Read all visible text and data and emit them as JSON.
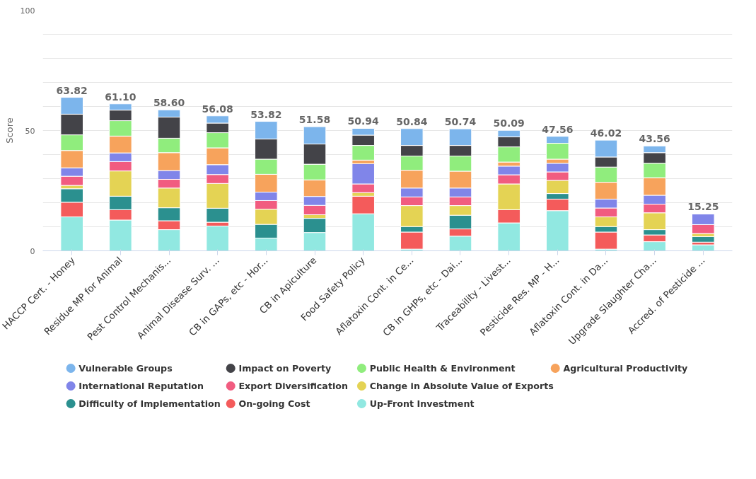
{
  "chart_data": {
    "type": "bar",
    "stacked": true,
    "ylabel": "Score",
    "categories": [
      "HACCP Cert. - Honey",
      "Residue MP for Animal",
      "Pest Control Mechanis...",
      "Animal Disease Surv. ...",
      "CB in GAPs, etc - Hor...",
      "CB in Apiculture",
      "Food Safety Policy",
      "Aflatoxin Cont. in Ce...",
      "CB in GHPs, etc - Dai...",
      "Traceability - Livest...",
      "Pesticide Res. MP - H...",
      "Aflatoxin Cont. in Da...",
      "Upgrade Slaughter Cha...",
      "Accred. of Pesticide ..."
    ],
    "ylim": [
      0,
      100
    ],
    "yticks": [
      0,
      {
        "value": 10,
        "label": null
      },
      {
        "value": 20,
        "label": null
      },
      {
        "value": 30,
        "label": null
      },
      {
        "value": 40,
        "label": null
      },
      50,
      {
        "value": 60,
        "label": null
      },
      {
        "value": 70,
        "label": null
      },
      {
        "value": 80,
        "label": null
      },
      {
        "value": 90,
        "label": null
      },
      100
    ],
    "grid": "y",
    "legend": "bottom",
    "totals": [
      "63.82",
      "61.10",
      "58.60",
      "56.08",
      "53.82",
      "51.58",
      "50.94",
      "50.84",
      "50.74",
      "50.09",
      "47.56",
      "46.02",
      "43.56",
      "15.25"
    ],
    "series": [
      {
        "name": "Up-Front Investment",
        "color": "#91e8e1",
        "values": [
          14.1,
          12.8,
          8.8,
          10.3,
          5.3,
          7.6,
          15.4,
          0.7,
          6.1,
          11.6,
          16.7,
          0.7,
          3.8,
          2.5
        ]
      },
      {
        "name": "On-going Cost",
        "color": "#f45b5b",
        "values": [
          6.1,
          4.3,
          3.7,
          1.6,
          null,
          null,
          7.3,
          7.1,
          3.0,
          5.5,
          4.8,
          7.1,
          2.8,
          1.1
        ]
      },
      {
        "name": "Difficulty of Implementation",
        "color": "#2b908f",
        "values": [
          5.6,
          5.6,
          5.4,
          5.8,
          5.7,
          5.9,
          null,
          2.3,
          5.7,
          null,
          2.3,
          2.3,
          2.2,
          2.3
        ]
      },
      {
        "name": "Change in Absolute Value of Exports",
        "color": "#e4d354",
        "values": [
          1.4,
          10.5,
          8.2,
          10.3,
          6.3,
          1.5,
          1.5,
          8.7,
          4.0,
          10.7,
          5.5,
          4.0,
          7.0,
          1.3
        ]
      },
      {
        "name": "Export Diversification",
        "color": "#f15c80",
        "values": [
          3.8,
          3.9,
          3.6,
          3.7,
          3.6,
          3.9,
          3.6,
          3.6,
          3.6,
          3.8,
          3.5,
          3.7,
          3.6,
          3.7
        ]
      },
      {
        "name": "International Reputation",
        "color": "#8085e9",
        "values": [
          3.5,
          3.6,
          3.7,
          4.1,
          3.5,
          3.7,
          8.4,
          3.7,
          3.7,
          3.6,
          3.6,
          3.7,
          3.7,
          4.4
        ]
      },
      {
        "name": "Agricultural Productivity",
        "color": "#f7a35c",
        "values": [
          7.2,
          7.0,
          7.4,
          7.0,
          7.4,
          6.9,
          1.5,
          7.4,
          7.0,
          1.7,
          1.7,
          7.0,
          7.3,
          null
        ]
      },
      {
        "name": "Public Health & Environment",
        "color": "#90ed7d",
        "values": [
          6.5,
          6.4,
          6.0,
          6.3,
          6.3,
          6.5,
          6.1,
          5.9,
          6.3,
          6.3,
          6.6,
          6.3,
          6.0,
          null
        ]
      },
      {
        "name": "Impact on Poverty",
        "color": "#434348",
        "values": [
          8.6,
          4.4,
          8.8,
          4.0,
          8.4,
          8.4,
          4.3,
          4.4,
          4.4,
          4.2,
          null,
          4.2,
          4.4,
          null
        ]
      },
      {
        "name": "Vulnerable Groups",
        "color": "#7cb5ec",
        "values": [
          7.0,
          2.6,
          3.0,
          3.0,
          7.3,
          7.2,
          2.8,
          7.0,
          6.9,
          2.7,
          2.9,
          7.0,
          2.8,
          null
        ]
      }
    ]
  }
}
